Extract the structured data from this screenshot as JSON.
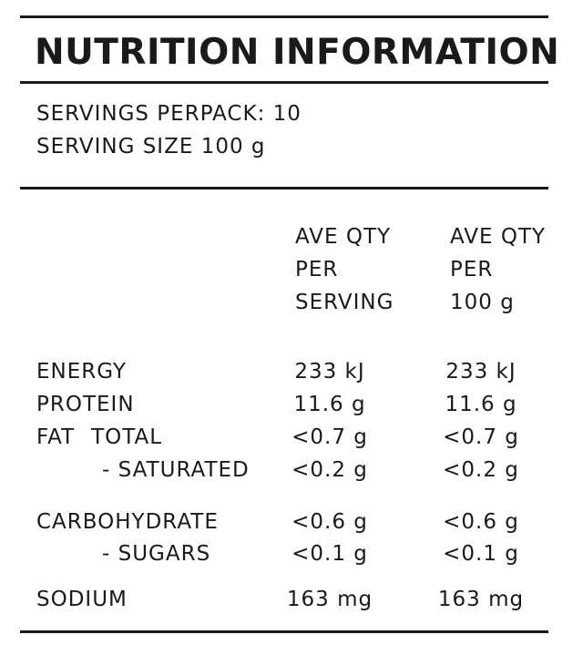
{
  "title": "NUTRITION INFORMATION",
  "servings_per_pack": "SERVINGS PERPACK: 10",
  "serving_size": "SERVING SIZE 100 g",
  "columns": {
    "per_serving": [
      "AVE QTY",
      "PER",
      "SERVING"
    ],
    "per_100g": [
      "AVE QTY",
      "PER",
      "100 g"
    ]
  },
  "rows": [
    {
      "name": "ENERGY",
      "per_serving": "233 kJ",
      "per_100g": "233 kJ"
    },
    {
      "name": "PROTEIN",
      "per_serving": "11.6 g",
      "per_100g": "11.6 g"
    },
    {
      "name": "FAT",
      "name_sub": "TOTAL",
      "per_serving": "<0.7 g",
      "per_100g": "<0.7 g"
    },
    {
      "name": "- SATURATED",
      "per_serving": "<0.2 g",
      "per_100g": "<0.2 g"
    },
    {
      "name": "CARBOHYDRATE",
      "per_serving": "<0.6 g",
      "per_100g": "<0.6 g"
    },
    {
      "name": "- SUGARS",
      "per_serving": "<0.1 g",
      "per_100g": "<0.1 g"
    },
    {
      "name": "SODIUM",
      "per_serving": "163 mg",
      "per_100g": "163 mg"
    }
  ]
}
